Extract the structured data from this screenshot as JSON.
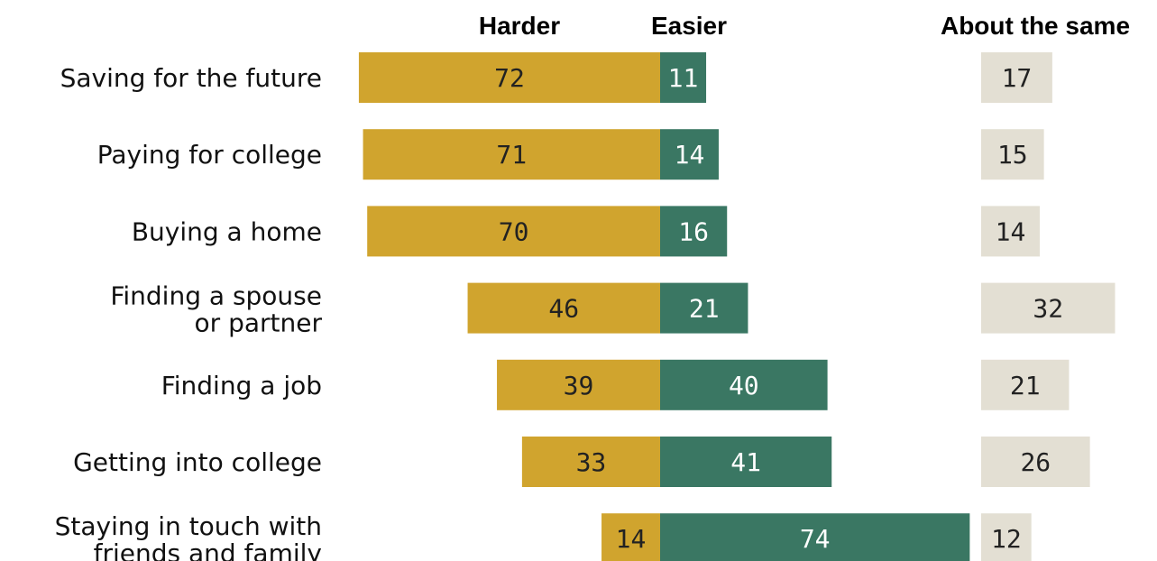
{
  "chart_data": {
    "type": "bar",
    "headers": {
      "harder": "Harder",
      "easier": "Easier",
      "same": "About the same"
    },
    "categories": [
      [
        "Saving for the future"
      ],
      [
        "Paying for college"
      ],
      [
        "Buying a home"
      ],
      [
        "Finding a spouse",
        "or partner"
      ],
      [
        "Finding a job"
      ],
      [
        "Getting into college"
      ],
      [
        "Staying in touch with",
        "friends and family"
      ]
    ],
    "series": [
      {
        "name": "Harder",
        "color": "#d0a42e",
        "values": [
          72,
          71,
          70,
          46,
          39,
          33,
          14
        ]
      },
      {
        "name": "Easier",
        "color": "#3a7763",
        "values": [
          11,
          14,
          16,
          21,
          40,
          41,
          74
        ]
      },
      {
        "name": "About the same",
        "color": "#e3dfd3",
        "values": [
          17,
          15,
          14,
          32,
          21,
          26,
          12
        ]
      }
    ],
    "colors": {
      "harder": "#d0a42e",
      "easier": "#3a7763",
      "same": "#e3dfd3",
      "label_dark": "#222222",
      "label_light": "#ffffff"
    }
  }
}
